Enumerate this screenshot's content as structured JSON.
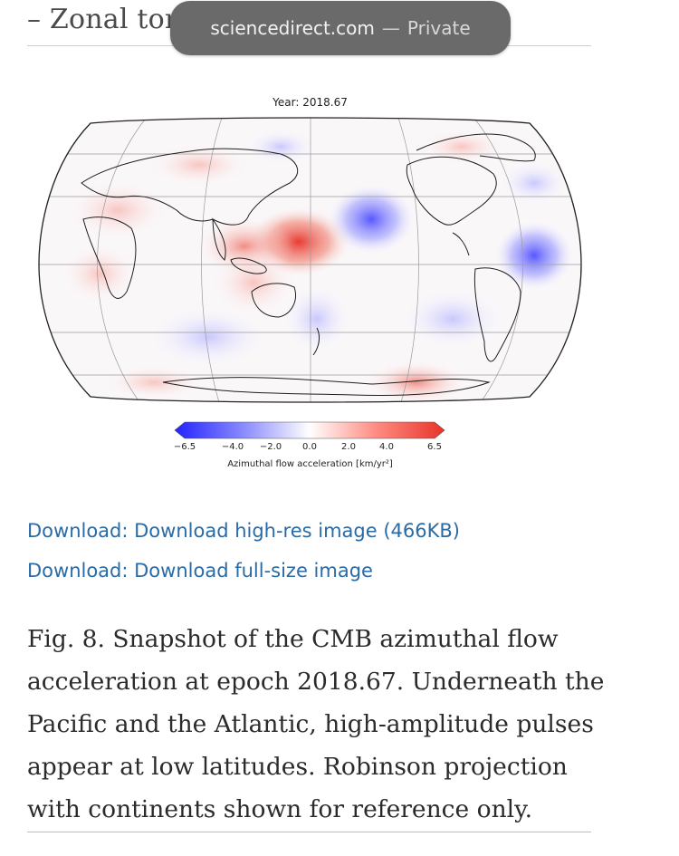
{
  "browser": {
    "domain": "sciencedirect.com",
    "separator": "—",
    "mode": "Private"
  },
  "article": {
    "section_heading": "– Zonal toro"
  },
  "figure": {
    "title": "Year: 2018.67",
    "colorbar": {
      "ticks": [
        "−6.5",
        "−4.0",
        "−2.0",
        "0.0",
        "2.0",
        "4.0",
        "6.5"
      ],
      "tick_values": [
        -6.5,
        -4.0,
        -2.0,
        0.0,
        2.0,
        4.0,
        6.5
      ],
      "label": "Azimuthal flow acceleration [km/yr²]",
      "cmap": "blue-white-red (bwr)",
      "low_color": "#2a2aff",
      "high_color": "#e8332a"
    },
    "projection": "Robinson"
  },
  "links": {
    "high_res": "Download: Download high-res image (466KB)",
    "full_size": "Download: Download full-size image"
  },
  "caption": {
    "line1": "Fig. 8. Snapshot of the CMB azimuthal flow",
    "line2": "acceleration at epoch 2018.67. Underneath the",
    "line3": "Pacific and the Atlantic, high-amplitude pulses",
    "line4": "appear at low latitudes. Robinson projection",
    "line5": "with continents shown for reference only."
  },
  "colors": {
    "link": "#2a6aa5",
    "pill_bg": "#6a6a6a"
  }
}
